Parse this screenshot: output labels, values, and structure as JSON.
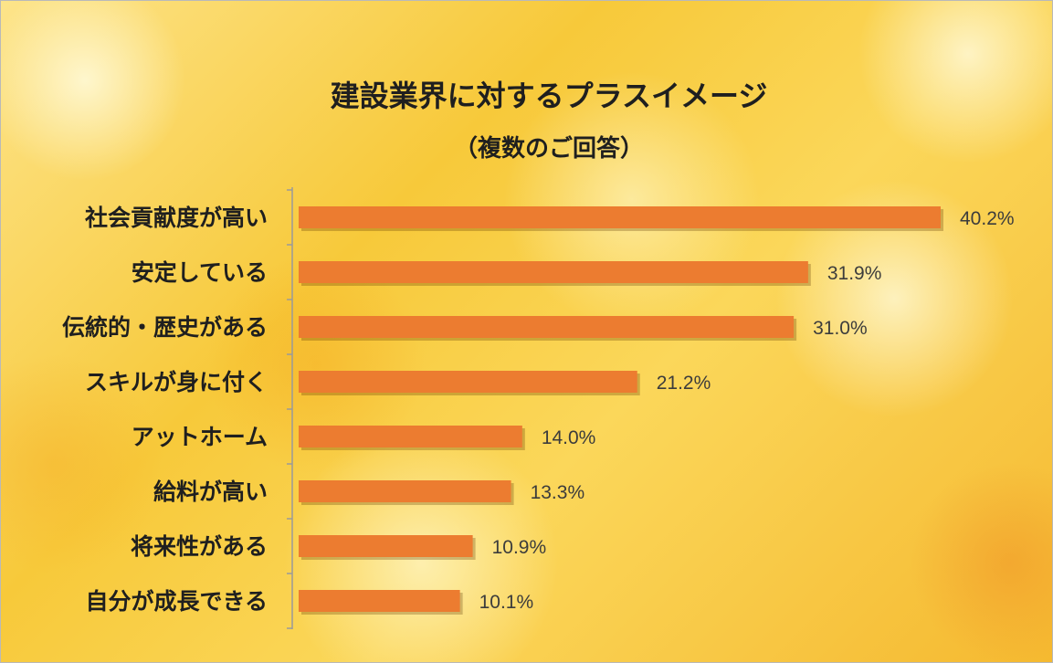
{
  "chart_data": {
    "type": "bar",
    "orientation": "horizontal",
    "title": "建設業界に対するプラスイメージ",
    "subtitle": "（複数のご回答）",
    "categories": [
      "社会貢献度が高い",
      "安定している",
      "伝統的・歴史がある",
      "スキルが身に付く",
      "アットホーム",
      "給料が高い",
      "将来性がある",
      "自分が成長できる"
    ],
    "values": [
      40.2,
      31.9,
      31.0,
      21.2,
      14.0,
      13.3,
      10.9,
      10.1
    ],
    "value_labels": [
      "40.2%",
      "31.9%",
      "31.0%",
      "21.2%",
      "14.0%",
      "13.3%",
      "10.9%",
      "10.1%"
    ],
    "unit": "%",
    "bar_color": "#ec7c30",
    "legend": "none",
    "grid": false
  }
}
